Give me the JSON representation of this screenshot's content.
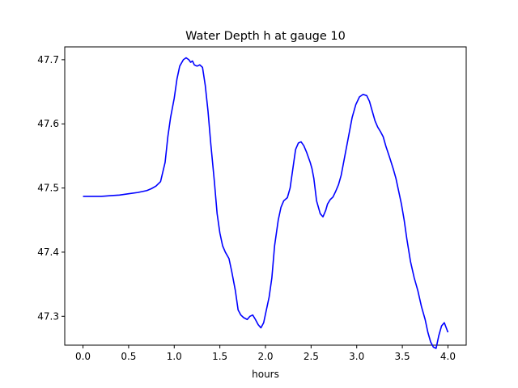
{
  "chart_data": {
    "type": "line",
    "title": "Water Depth h at gauge 10",
    "xlabel": "hours",
    "ylabel": "",
    "xlim": [
      -0.2,
      4.2
    ],
    "ylim": [
      47.255,
      47.72
    ],
    "xticks": [
      0.0,
      0.5,
      1.0,
      1.5,
      2.0,
      2.5,
      3.0,
      3.5,
      4.0
    ],
    "xtick_labels": [
      "0.0",
      "0.5",
      "1.0",
      "1.5",
      "2.0",
      "2.5",
      "3.0",
      "3.5",
      "4.0"
    ],
    "yticks": [
      47.3,
      47.4,
      47.5,
      47.6,
      47.7
    ],
    "ytick_labels": [
      "47.3",
      "47.4",
      "47.5",
      "47.6",
      "47.7"
    ],
    "grid": false,
    "line_color": "#0000ff",
    "series": [
      {
        "x": [
          0.0,
          0.1,
          0.2,
          0.3,
          0.4,
          0.5,
          0.6,
          0.7,
          0.75,
          0.8,
          0.85,
          0.9,
          0.93,
          0.96,
          1.0,
          1.03,
          1.06,
          1.1,
          1.13,
          1.16,
          1.18,
          1.2,
          1.22,
          1.25,
          1.28,
          1.31,
          1.34,
          1.37,
          1.4,
          1.44,
          1.47,
          1.5,
          1.53,
          1.56,
          1.6,
          1.63,
          1.67,
          1.7,
          1.73,
          1.76,
          1.8,
          1.83,
          1.86,
          1.89,
          1.92,
          1.95,
          1.98,
          2.01,
          2.04,
          2.07,
          2.1,
          2.14,
          2.17,
          2.2,
          2.24,
          2.27,
          2.3,
          2.33,
          2.36,
          2.39,
          2.42,
          2.45,
          2.47,
          2.49,
          2.51,
          2.53,
          2.56,
          2.6,
          2.63,
          2.66,
          2.68,
          2.71,
          2.74,
          2.77,
          2.8,
          2.83,
          2.87,
          2.91,
          2.95,
          2.99,
          3.03,
          3.07,
          3.11,
          3.14,
          3.17,
          3.2,
          3.23,
          3.26,
          3.29,
          3.32,
          3.36,
          3.4,
          3.43,
          3.46,
          3.49,
          3.52,
          3.55,
          3.59,
          3.63,
          3.67,
          3.71,
          3.75,
          3.78,
          3.81,
          3.84,
          3.87,
          3.9,
          3.93,
          3.96,
          4.0
        ],
        "y": [
          47.487,
          47.487,
          47.487,
          47.488,
          47.489,
          47.491,
          47.493,
          47.496,
          47.499,
          47.503,
          47.51,
          47.54,
          47.58,
          47.61,
          47.64,
          47.67,
          47.69,
          47.7,
          47.703,
          47.7,
          47.696,
          47.698,
          47.692,
          47.69,
          47.692,
          47.688,
          47.66,
          47.62,
          47.57,
          47.51,
          47.46,
          47.43,
          47.41,
          47.4,
          47.39,
          47.37,
          47.34,
          47.31,
          47.302,
          47.298,
          47.295,
          47.3,
          47.302,
          47.295,
          47.287,
          47.282,
          47.29,
          47.31,
          47.33,
          47.36,
          47.41,
          47.45,
          47.47,
          47.48,
          47.485,
          47.5,
          47.53,
          47.56,
          47.57,
          47.572,
          47.566,
          47.556,
          47.548,
          47.54,
          47.53,
          47.515,
          47.48,
          47.46,
          47.455,
          47.465,
          47.475,
          47.482,
          47.486,
          47.495,
          47.505,
          47.52,
          47.55,
          47.58,
          47.61,
          47.63,
          47.642,
          47.646,
          47.644,
          47.635,
          47.62,
          47.605,
          47.595,
          47.588,
          47.58,
          47.565,
          47.548,
          47.53,
          47.515,
          47.495,
          47.475,
          47.45,
          47.42,
          47.385,
          47.36,
          47.34,
          47.315,
          47.295,
          47.275,
          47.26,
          47.252,
          47.25,
          47.27,
          47.285,
          47.29,
          47.275
        ]
      }
    ]
  }
}
